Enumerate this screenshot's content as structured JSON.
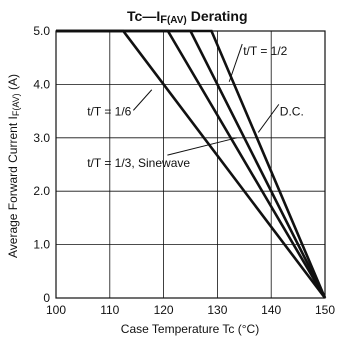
{
  "chart_data": {
    "type": "line",
    "title_prefix": "Tc",
    "title_dash": "—",
    "title_i": "I",
    "title_f": "F",
    "title_av": "(AV)",
    "title_suffix": "Derating",
    "xlabel": "Case Temperature   Tc (°C)",
    "ylabel_main": "Average Forward Current  I",
    "ylabel_sub": "F(AV)",
    "ylabel_unit": " (A)",
    "xlim": [
      100,
      150
    ],
    "ylim": [
      0,
      5.0
    ],
    "x_ticks": [
      100,
      110,
      120,
      130,
      140,
      150
    ],
    "y_ticks": [
      0,
      1.0,
      2.0,
      3.0,
      4.0,
      5.0
    ],
    "y_tick_labels": [
      "0",
      "1.0",
      "2.0",
      "3.0",
      "4.0",
      "5.0"
    ],
    "grid": true,
    "series": [
      {
        "name": "t/T=1/3, Sinewave",
        "x": [
          100,
          112.5,
          150
        ],
        "y": [
          5.0,
          5.0,
          0
        ]
      },
      {
        "name": "t/T=1/6",
        "x": [
          100,
          120.8,
          150
        ],
        "y": [
          5.0,
          5.0,
          0
        ]
      },
      {
        "name": "t/T=1/2",
        "x": [
          100,
          125.0,
          150
        ],
        "y": [
          5.0,
          5.0,
          0
        ]
      },
      {
        "name": "D.C.",
        "x": [
          100,
          128.9,
          150
        ],
        "y": [
          5.0,
          5.0,
          0
        ]
      }
    ],
    "annotations": [
      {
        "text": "t/T = 1/2",
        "series": 2,
        "tx": 134.8,
        "ty": 4.55,
        "ax": 132.2,
        "ay": 4.05
      },
      {
        "text": "D.C.",
        "series": 3,
        "tx": 141.6,
        "ty": 3.42,
        "ax": 137.6,
        "ay": 3.1
      },
      {
        "text": "t/T = 1/6",
        "series": 1,
        "tx": 105.8,
        "ty": 3.42,
        "ax": 117.8,
        "ay": 3.9
      },
      {
        "text": "t/T = 1/3,  Sinewave",
        "series": 0,
        "tx": 105.8,
        "ty": 2.45,
        "ax": 133.6,
        "ay": 3.0
      }
    ]
  }
}
